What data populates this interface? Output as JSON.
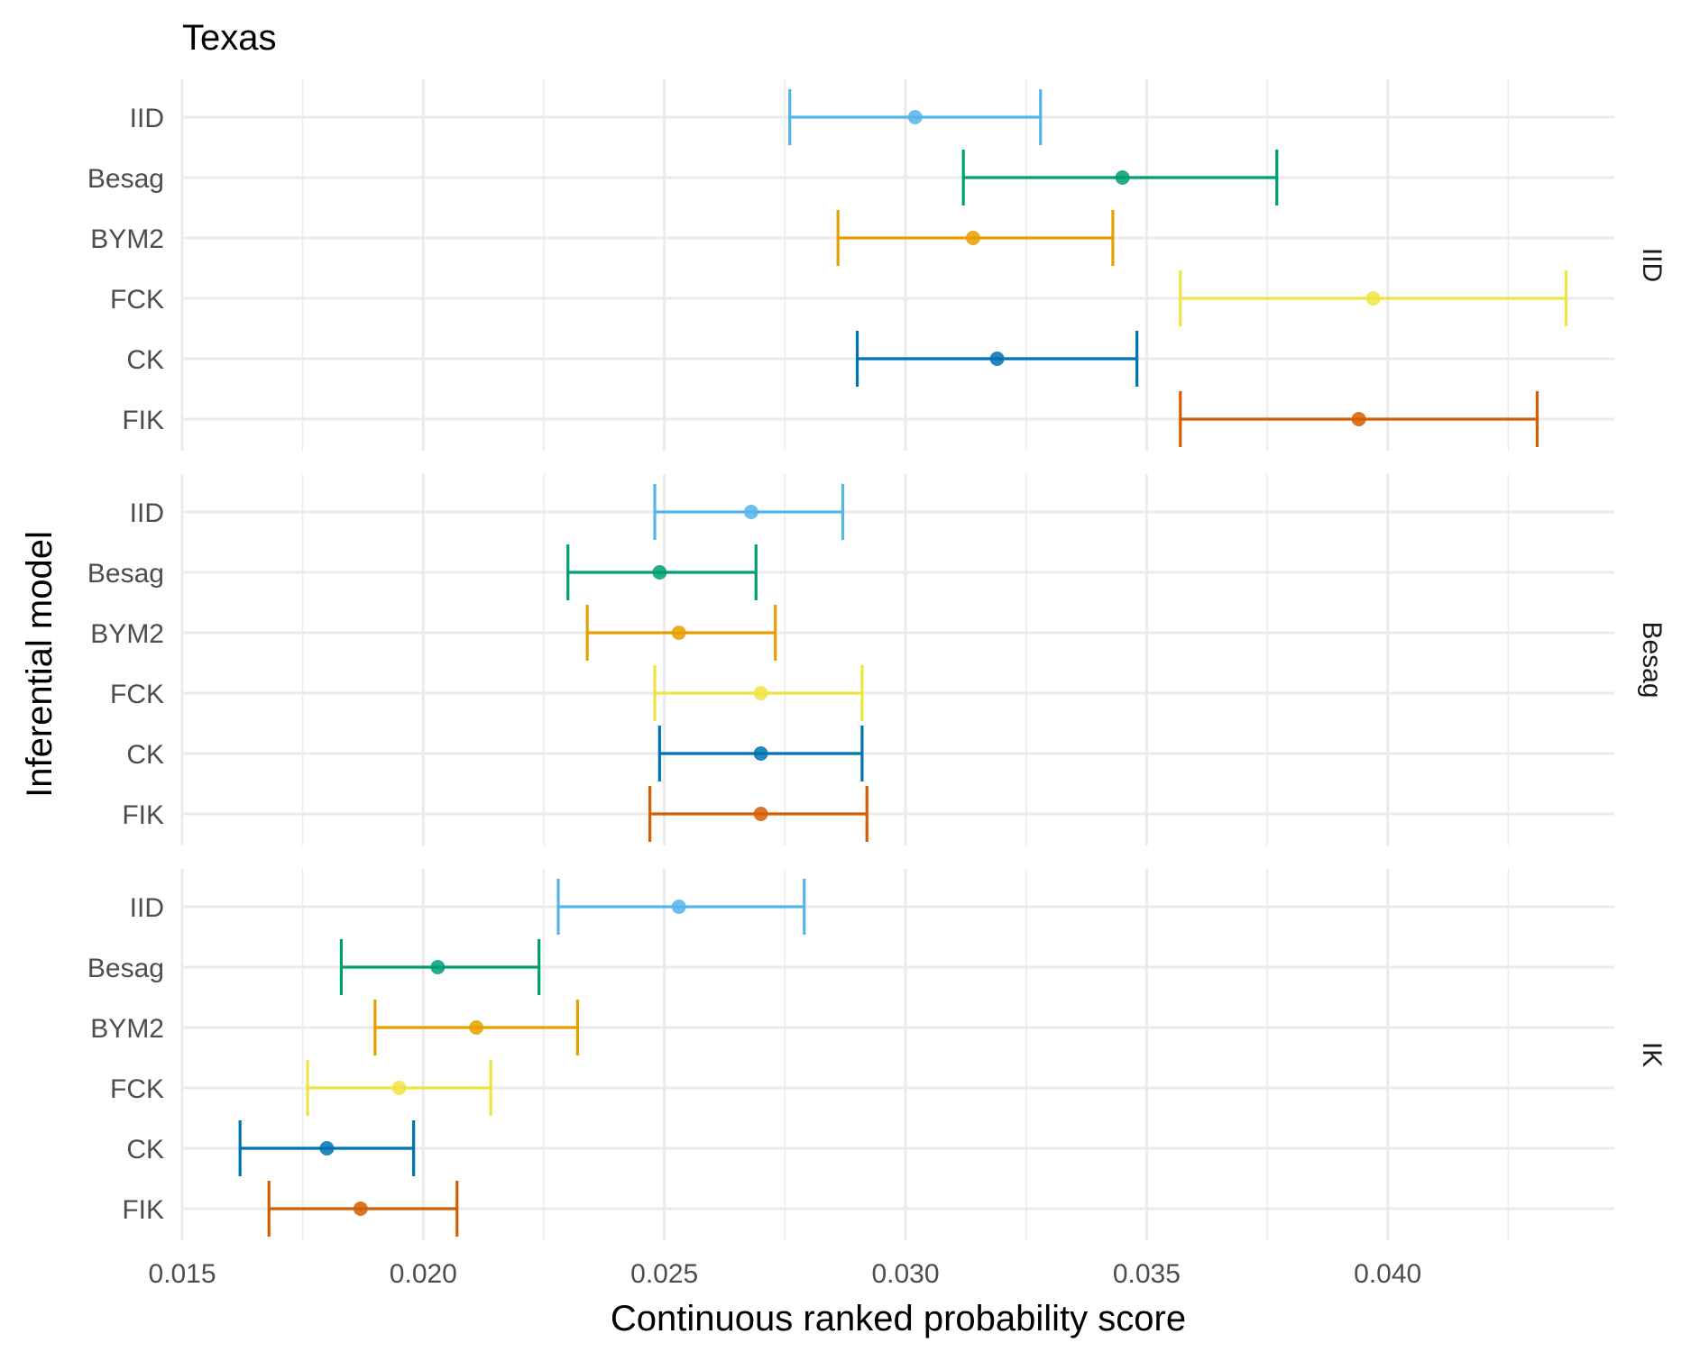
{
  "chart_data": {
    "type": "errorbar",
    "title": "Texas",
    "xlabel": "Continuous ranked probability score",
    "ylabel": "Inferential model",
    "xlim": [
      0.015,
      0.0447
    ],
    "x_ticks": [
      "0.015",
      "0.020",
      "0.025",
      "0.030",
      "0.035",
      "0.040"
    ],
    "categories": [
      "IID",
      "Besag",
      "BYM2",
      "FCK",
      "CK",
      "FIK"
    ],
    "colors": {
      "IID": "#56B4E9",
      "Besag": "#009E73",
      "BYM2": "#E69F00",
      "FCK": "#F0E442",
      "CK": "#0072B2",
      "FIK": "#D55E00"
    },
    "grid": true,
    "legend": "none",
    "panels": [
      {
        "strip": "IID",
        "rows": [
          {
            "model": "IID",
            "low": 0.0276,
            "mean": 0.0302,
            "high": 0.0328
          },
          {
            "model": "Besag",
            "low": 0.0312,
            "mean": 0.0345,
            "high": 0.0377
          },
          {
            "model": "BYM2",
            "low": 0.0286,
            "mean": 0.0314,
            "high": 0.0343
          },
          {
            "model": "FCK",
            "low": 0.0357,
            "mean": 0.0397,
            "high": 0.0437
          },
          {
            "model": "CK",
            "low": 0.029,
            "mean": 0.0319,
            "high": 0.0348
          },
          {
            "model": "FIK",
            "low": 0.0357,
            "mean": 0.0394,
            "high": 0.0431
          }
        ]
      },
      {
        "strip": "Besag",
        "rows": [
          {
            "model": "IID",
            "low": 0.0248,
            "mean": 0.0268,
            "high": 0.0287
          },
          {
            "model": "Besag",
            "low": 0.023,
            "mean": 0.0249,
            "high": 0.0269
          },
          {
            "model": "BYM2",
            "low": 0.0234,
            "mean": 0.0253,
            "high": 0.0273
          },
          {
            "model": "FCK",
            "low": 0.0248,
            "mean": 0.027,
            "high": 0.0291
          },
          {
            "model": "CK",
            "low": 0.0249,
            "mean": 0.027,
            "high": 0.0291
          },
          {
            "model": "FIK",
            "low": 0.0247,
            "mean": 0.027,
            "high": 0.0292
          }
        ]
      },
      {
        "strip": "IK",
        "rows": [
          {
            "model": "IID",
            "low": 0.0228,
            "mean": 0.0253,
            "high": 0.0279
          },
          {
            "model": "Besag",
            "low": 0.0183,
            "mean": 0.0203,
            "high": 0.0224
          },
          {
            "model": "BYM2",
            "low": 0.019,
            "mean": 0.0211,
            "high": 0.0232
          },
          {
            "model": "FCK",
            "low": 0.0176,
            "mean": 0.0195,
            "high": 0.0214
          },
          {
            "model": "CK",
            "low": 0.0162,
            "mean": 0.018,
            "high": 0.0198
          },
          {
            "model": "FIK",
            "low": 0.0168,
            "mean": 0.0187,
            "high": 0.0207
          }
        ]
      }
    ]
  }
}
